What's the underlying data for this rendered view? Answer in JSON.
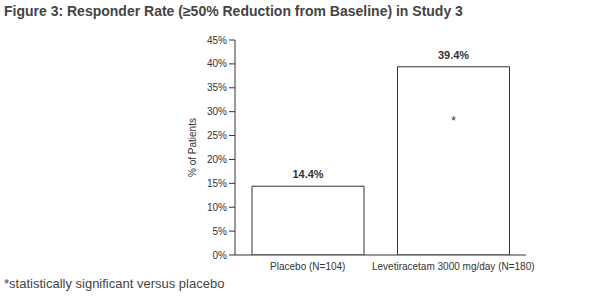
{
  "chart_data": {
    "type": "bar",
    "title": "Figure 3: Responder Rate (≥50% Reduction from Baseline) in Study 3",
    "y_label": "% of Patients",
    "categories": [
      "Placebo (N=104)",
      "Levetiracetam 3000 mg/day (N=180)"
    ],
    "values": [
      14.4,
      39.4
    ],
    "value_labels": [
      "14.4%",
      "39.4%"
    ],
    "data_labels": true,
    "color": "#ffffff",
    "ylim": [
      0,
      45
    ],
    "yticks": [
      {
        "value": 0,
        "label": "0%"
      },
      {
        "value": 5,
        "label": "5%"
      },
      {
        "value": 10,
        "label": "10%"
      },
      {
        "value": 15,
        "label": "15%"
      },
      {
        "value": 20,
        "label": "20%"
      },
      {
        "value": 25,
        "label": "25%"
      },
      {
        "value": 30,
        "label": "30%"
      },
      {
        "value": 35,
        "label": "35%"
      },
      {
        "value": 40,
        "label": "40%"
      },
      {
        "value": 45,
        "label": "45%"
      }
    ],
    "grid": false,
    "annotation": {
      "text": "*",
      "category": "Levetiracetam 3000 mg/day (N=180)"
    },
    "footnote": "*statistically significant versus placebo"
  }
}
